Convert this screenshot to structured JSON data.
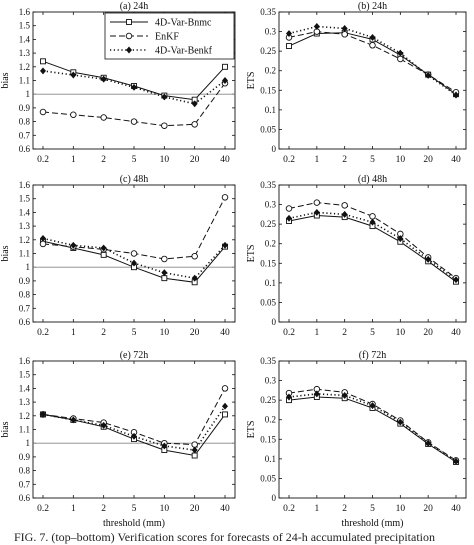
{
  "figure": {
    "caption": "FIG. 7. (top–bottom) Verification scores for forecasts of 24-h accumulated precipitation"
  },
  "legend": {
    "entries": [
      {
        "name": "4D-Var-Bnmc",
        "line": "solid",
        "marker": "square"
      },
      {
        "name": "EnKF",
        "line": "dashed",
        "marker": "circle"
      },
      {
        "name": "4D-Var-Benkf",
        "line": "dotted",
        "marker": "diamond"
      }
    ],
    "placement": "top-right of panel (a)"
  },
  "chart_data": [
    {
      "id": "a",
      "type": "line",
      "title": "(a) 24h",
      "xlabel": "",
      "ylabel": "bias",
      "categories": [
        "0.2",
        "1",
        "2",
        "5",
        "10",
        "20",
        "40"
      ],
      "ylim": [
        0.6,
        1.6
      ],
      "yticks": [
        "0.6",
        "0.7",
        "0.8",
        "0.9",
        "1",
        "1.1",
        "1.2",
        "1.3",
        "1.4",
        "1.5",
        "1.6"
      ],
      "reference_line": 1.0,
      "series": [
        {
          "name": "4D-Var-Bnmc",
          "values": [
            1.24,
            1.16,
            1.12,
            1.06,
            0.99,
            0.96,
            1.2
          ]
        },
        {
          "name": "EnKF",
          "values": [
            0.87,
            0.85,
            0.83,
            0.8,
            0.77,
            0.78,
            1.08
          ]
        },
        {
          "name": "4D-Var-Benkf",
          "values": [
            1.17,
            1.14,
            1.11,
            1.05,
            0.98,
            0.93,
            1.1
          ]
        }
      ]
    },
    {
      "id": "b",
      "type": "line",
      "title": "(b) 24h",
      "xlabel": "",
      "ylabel": "ETS",
      "categories": [
        "0.2",
        "1",
        "2",
        "5",
        "10",
        "20",
        "40"
      ],
      "ylim": [
        0.0,
        0.35
      ],
      "yticks": [
        "0",
        "0.05",
        "0.1",
        "0.15",
        "0.2",
        "0.25",
        "0.3",
        "0.35"
      ],
      "series": [
        {
          "name": "4D-Var-Bnmc",
          "values": [
            0.263,
            0.295,
            0.297,
            0.28,
            0.24,
            0.19,
            0.14
          ]
        },
        {
          "name": "EnKF",
          "values": [
            0.285,
            0.3,
            0.293,
            0.265,
            0.23,
            0.19,
            0.145
          ]
        },
        {
          "name": "4D-Var-Benkf",
          "values": [
            0.295,
            0.313,
            0.308,
            0.285,
            0.245,
            0.188,
            0.138
          ]
        }
      ]
    },
    {
      "id": "c",
      "type": "line",
      "title": "(c) 48h",
      "xlabel": "",
      "ylabel": "bias",
      "categories": [
        "0.2",
        "1",
        "2",
        "5",
        "10",
        "20",
        "40"
      ],
      "ylim": [
        0.6,
        1.6
      ],
      "yticks": [
        "0.6",
        "0.7",
        "0.8",
        "0.9",
        "1",
        "1.1",
        "1.2",
        "1.3",
        "1.4",
        "1.5",
        "1.6"
      ],
      "reference_line": 1.0,
      "series": [
        {
          "name": "4D-Var-Bnmc",
          "values": [
            1.19,
            1.14,
            1.09,
            1.0,
            0.92,
            0.89,
            1.15
          ]
        },
        {
          "name": "EnKF",
          "values": [
            1.17,
            1.15,
            1.13,
            1.1,
            1.06,
            1.08,
            1.51
          ]
        },
        {
          "name": "4D-Var-Benkf",
          "values": [
            1.21,
            1.16,
            1.14,
            1.03,
            0.96,
            0.92,
            1.16
          ]
        }
      ]
    },
    {
      "id": "d",
      "type": "line",
      "title": "(d) 48h",
      "xlabel": "",
      "ylabel": "ETS",
      "categories": [
        "0.2",
        "1",
        "2",
        "5",
        "10",
        "20",
        "40"
      ],
      "ylim": [
        0.0,
        0.35
      ],
      "yticks": [
        "0",
        "0.05",
        "0.1",
        "0.15",
        "0.2",
        "0.25",
        "0.3",
        "0.35"
      ],
      "series": [
        {
          "name": "4D-Var-Bnmc",
          "values": [
            0.258,
            0.272,
            0.268,
            0.245,
            0.205,
            0.155,
            0.103
          ]
        },
        {
          "name": "EnKF",
          "values": [
            0.29,
            0.305,
            0.298,
            0.27,
            0.225,
            0.165,
            0.112
          ]
        },
        {
          "name": "4D-Var-Benkf",
          "values": [
            0.265,
            0.28,
            0.275,
            0.255,
            0.213,
            0.16,
            0.108
          ]
        }
      ]
    },
    {
      "id": "e",
      "type": "line",
      "title": "(e) 72h",
      "xlabel": "threshold (mm)",
      "ylabel": "bias",
      "categories": [
        "0.2",
        "1",
        "2",
        "5",
        "10",
        "20",
        "40"
      ],
      "ylim": [
        0.6,
        1.6
      ],
      "yticks": [
        "0.6",
        "0.7",
        "0.8",
        "0.9",
        "1",
        "1.1",
        "1.2",
        "1.3",
        "1.4",
        "1.5",
        "1.6"
      ],
      "reference_line": 1.0,
      "series": [
        {
          "name": "4D-Var-Bnmc",
          "values": [
            1.21,
            1.17,
            1.12,
            1.03,
            0.95,
            0.91,
            1.21
          ]
        },
        {
          "name": "EnKF",
          "values": [
            1.21,
            1.18,
            1.15,
            1.08,
            1.0,
            0.99,
            1.4
          ]
        },
        {
          "name": "4D-Var-Benkf",
          "values": [
            1.21,
            1.17,
            1.13,
            1.05,
            0.98,
            0.95,
            1.27
          ]
        }
      ]
    },
    {
      "id": "f",
      "type": "line",
      "title": "(f) 72h",
      "xlabel": "threshold (mm)",
      "ylabel": "ETS",
      "categories": [
        "0.2",
        "1",
        "2",
        "5",
        "10",
        "20",
        "40"
      ],
      "ylim": [
        0.0,
        0.35
      ],
      "yticks": [
        "0",
        "0.05",
        "0.1",
        "0.15",
        "0.2",
        "0.25",
        "0.3",
        "0.35"
      ],
      "series": [
        {
          "name": "4D-Var-Bnmc",
          "values": [
            0.25,
            0.258,
            0.255,
            0.23,
            0.19,
            0.138,
            0.092
          ]
        },
        {
          "name": "EnKF",
          "values": [
            0.268,
            0.278,
            0.27,
            0.24,
            0.198,
            0.142,
            0.096
          ]
        },
        {
          "name": "4D-Var-Benkf",
          "values": [
            0.258,
            0.266,
            0.262,
            0.236,
            0.194,
            0.14,
            0.094
          ]
        }
      ]
    }
  ]
}
